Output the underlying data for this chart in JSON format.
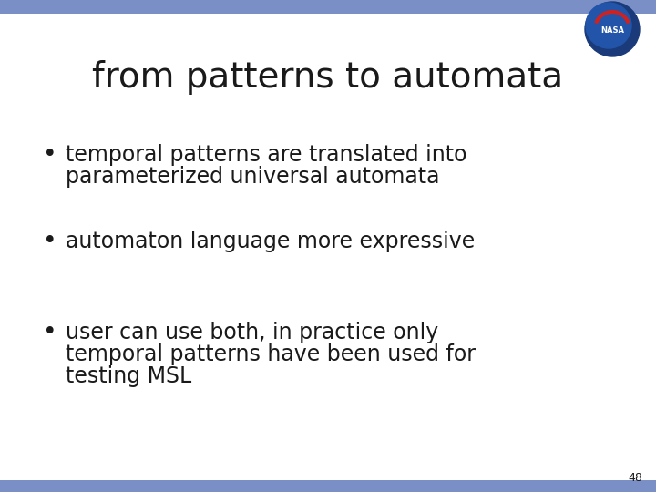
{
  "title": "from patterns to automata",
  "bullet1_line1": "temporal patterns are translated into",
  "bullet1_line2": "parameterized universal automata",
  "bullet2": "automaton language more expressive",
  "bullet3_line1": "user can use both, in practice only",
  "bullet3_line2": "temporal patterns have been used for",
  "bullet3_line3": "testing MSL",
  "background_color": "#ffffff",
  "title_color": "#1a1a1a",
  "text_color": "#1a1a1a",
  "bar_color": "#7b8fc7",
  "title_fontsize": 28,
  "bullet_fontsize": 17,
  "page_number": "48",
  "page_number_fontsize": 9,
  "nasa_circle_color": "#1a3a8a",
  "nasa_text_color": "#ffffff"
}
